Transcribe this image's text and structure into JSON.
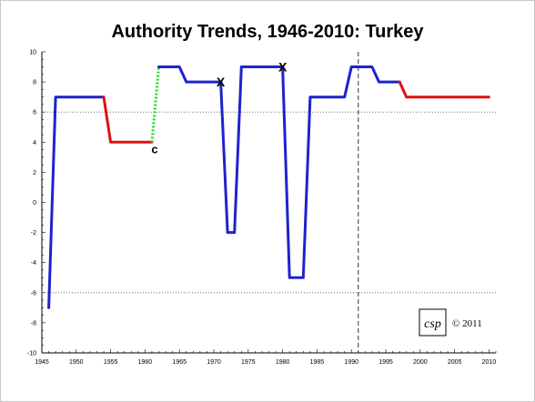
{
  "chart_data": {
    "type": "line",
    "title": "Authority Trends, 1946-2010: Turkey",
    "xlim": [
      1945,
      2011
    ],
    "ylim": [
      -10,
      10
    ],
    "xticks": [
      1945,
      1950,
      1955,
      1960,
      1965,
      1970,
      1975,
      1980,
      1985,
      1990,
      1995,
      2000,
      2005,
      2010
    ],
    "yticks": [
      10,
      8,
      6,
      4,
      2,
      0,
      -2,
      -4,
      -6,
      -8,
      -10
    ],
    "reference_lines": {
      "dotted_y": [
        6,
        -6
      ],
      "dashed_x": [
        1991
      ]
    },
    "series": [
      {
        "color": "#1f22cc",
        "style": "solid",
        "points": [
          [
            1946,
            -7
          ],
          [
            1947,
            7
          ],
          [
            1954,
            7
          ]
        ]
      },
      {
        "color": "#e01010",
        "style": "solid",
        "points": [
          [
            1954,
            7
          ],
          [
            1955,
            4
          ],
          [
            1961,
            4
          ]
        ]
      },
      {
        "color": "#22dd22",
        "style": "dotted",
        "points": [
          [
            1961,
            4
          ],
          [
            1962,
            9
          ]
        ]
      },
      {
        "color": "#1f22cc",
        "style": "solid",
        "points": [
          [
            1962,
            9
          ],
          [
            1965,
            9
          ],
          [
            1966,
            8
          ],
          [
            1971,
            8
          ],
          [
            1972,
            -2
          ],
          [
            1973,
            -2
          ],
          [
            1974,
            9
          ],
          [
            1980,
            9
          ],
          [
            1981,
            -5
          ],
          [
            1983,
            -5
          ],
          [
            1984,
            7
          ],
          [
            1989,
            7
          ],
          [
            1990,
            9
          ],
          [
            1993,
            9
          ],
          [
            1994,
            8
          ],
          [
            1997,
            8
          ]
        ]
      },
      {
        "color": "#e01010",
        "style": "solid",
        "points": [
          [
            1997,
            8
          ],
          [
            1998,
            7
          ],
          [
            2010,
            7
          ]
        ]
      }
    ],
    "markers": [
      {
        "label": "c",
        "x": 1961,
        "y": 4
      },
      {
        "label": "X",
        "x": 1971,
        "y": 8
      },
      {
        "label": "X",
        "x": 1980,
        "y": 9
      }
    ],
    "logo": "csp",
    "copyright": "© 2011"
  }
}
